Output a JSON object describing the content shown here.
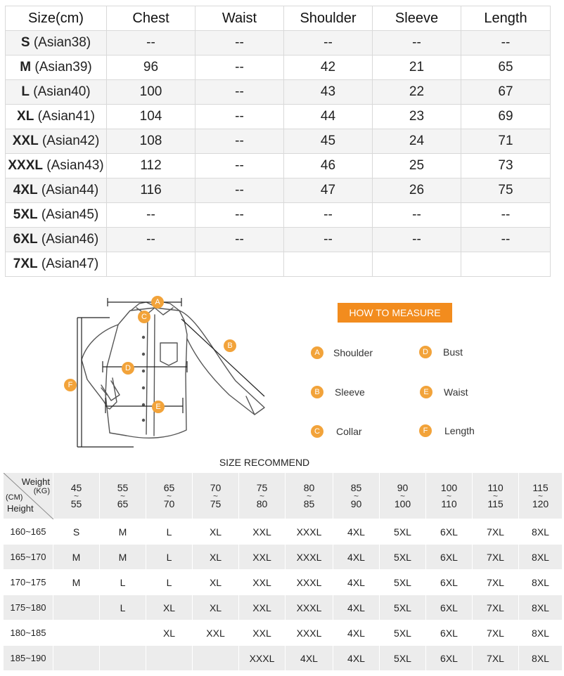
{
  "size_table": {
    "headers": [
      "Size(cm)",
      "Chest",
      "Waist",
      "Shoulder",
      "Sleeve",
      "Length"
    ],
    "rows": [
      {
        "size": "S",
        "asian": "(Asian38)",
        "chest": "--",
        "waist": "--",
        "shoulder": "--",
        "sleeve": "--",
        "length": "--"
      },
      {
        "size": "M",
        "asian": "(Asian39)",
        "chest": "96",
        "waist": "--",
        "shoulder": "42",
        "sleeve": "21",
        "length": "65"
      },
      {
        "size": "L",
        "asian": "(Asian40)",
        "chest": "100",
        "waist": "--",
        "shoulder": "43",
        "sleeve": "22",
        "length": "67"
      },
      {
        "size": "XL",
        "asian": "(Asian41)",
        "chest": "104",
        "waist": "--",
        "shoulder": "44",
        "sleeve": "23",
        "length": "69"
      },
      {
        "size": "XXL",
        "asian": "(Asian42)",
        "chest": "108",
        "waist": "--",
        "shoulder": "45",
        "sleeve": "24",
        "length": "71"
      },
      {
        "size": "XXXL",
        "asian": "(Asian43)",
        "chest": "112",
        "waist": "--",
        "shoulder": "46",
        "sleeve": "25",
        "length": "73"
      },
      {
        "size": "4XL",
        "asian": "(Asian44)",
        "chest": "116",
        "waist": "--",
        "shoulder": "47",
        "sleeve": "26",
        "length": "75"
      },
      {
        "size": "5XL",
        "asian": "(Asian45)",
        "chest": "--",
        "waist": "--",
        "shoulder": "--",
        "sleeve": "--",
        "length": "--"
      },
      {
        "size": "6XL",
        "asian": "(Asian46)",
        "chest": "--",
        "waist": "--",
        "shoulder": "--",
        "sleeve": "--",
        "length": "--"
      },
      {
        "size": "7XL",
        "asian": "(Asian47)",
        "chest": "",
        "waist": "",
        "shoulder": "",
        "sleeve": "",
        "length": ""
      }
    ]
  },
  "measure": {
    "button_label": "HOW TO MEASURE",
    "accent_color": "#f2a33a",
    "button_color": "#f28c1e",
    "shirt_icon": "shirt-outline-icon",
    "markers": [
      "A",
      "B",
      "C",
      "D",
      "E",
      "F"
    ],
    "legend": [
      {
        "letter": "A",
        "label": "Shoulder"
      },
      {
        "letter": "D",
        "label": "Bust"
      },
      {
        "letter": "B",
        "label": "Sleeve"
      },
      {
        "letter": "E",
        "label": "Waist"
      },
      {
        "letter": "C",
        "label": "Collar"
      },
      {
        "letter": "F",
        "label": "Length"
      }
    ]
  },
  "recommend": {
    "title": "SIZE RECOMMEND",
    "corner": {
      "weight": "Weight",
      "kg": "(KG)",
      "cm": "(CM)",
      "height": "Height"
    },
    "weight_ranges": [
      [
        "45",
        "55"
      ],
      [
        "55",
        "65"
      ],
      [
        "65",
        "70"
      ],
      [
        "70",
        "75"
      ],
      [
        "75",
        "80"
      ],
      [
        "80",
        "85"
      ],
      [
        "85",
        "90"
      ],
      [
        "90",
        "100"
      ],
      [
        "100",
        "110"
      ],
      [
        "110",
        "115"
      ],
      [
        "115",
        "120"
      ]
    ],
    "rows": [
      {
        "height": "160~165",
        "cells": [
          "S",
          "M",
          "L",
          "XL",
          "XXL",
          "XXXL",
          "4XL",
          "5XL",
          "6XL",
          "7XL",
          "8XL"
        ]
      },
      {
        "height": "165~170",
        "cells": [
          "M",
          "M",
          "L",
          "XL",
          "XXL",
          "XXXL",
          "4XL",
          "5XL",
          "6XL",
          "7XL",
          "8XL"
        ]
      },
      {
        "height": "170~175",
        "cells": [
          "M",
          "L",
          "L",
          "XL",
          "XXL",
          "XXXL",
          "4XL",
          "5XL",
          "6XL",
          "7XL",
          "8XL"
        ]
      },
      {
        "height": "175~180",
        "cells": [
          "",
          "L",
          "XL",
          "XL",
          "XXL",
          "XXXL",
          "4XL",
          "5XL",
          "6XL",
          "7XL",
          "8XL"
        ]
      },
      {
        "height": "180~185",
        "cells": [
          "",
          "",
          "XL",
          "XXL",
          "XXL",
          "XXXL",
          "4XL",
          "5XL",
          "6XL",
          "7XL",
          "8XL"
        ]
      },
      {
        "height": "185~190",
        "cells": [
          "",
          "",
          "",
          "",
          "XXXL",
          "4XL",
          "4XL",
          "5XL",
          "6XL",
          "7XL",
          "8XL"
        ]
      }
    ]
  }
}
